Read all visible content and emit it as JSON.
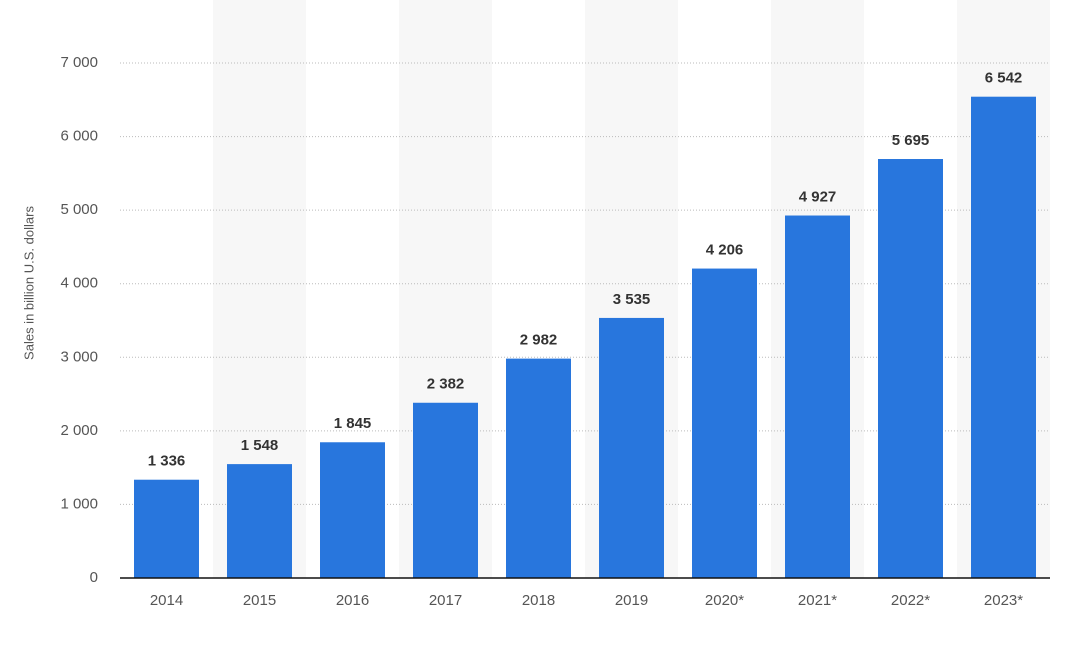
{
  "chart_data": {
    "type": "bar",
    "y_label": "Sales in billion U.S. dollars",
    "categories": [
      "2014",
      "2015",
      "2016",
      "2017",
      "2018",
      "2019",
      "2020*",
      "2021*",
      "2022*",
      "2023*"
    ],
    "values": [
      1336,
      1548,
      1845,
      2382,
      2982,
      3535,
      4206,
      4927,
      5695,
      6542
    ],
    "value_labels": [
      "1 336",
      "1 548",
      "1 845",
      "2 382",
      "2 982",
      "3 535",
      "4 206",
      "4 927",
      "5 695",
      "6 542"
    ],
    "color": "#2876dd",
    "ylim": [
      0,
      7000
    ],
    "yticks": [
      0,
      {
        "value": 1000,
        "label": "1 000"
      },
      {
        "value": 2000,
        "label": "2 000"
      },
      {
        "value": 3000,
        "label": "3 000"
      },
      {
        "value": 4000,
        "label": "4 000"
      },
      {
        "value": 5000,
        "label": "5 000"
      },
      {
        "value": 6000,
        "label": "6 000"
      },
      {
        "value": 7000,
        "label": "7 000"
      }
    ],
    "grid": true
  }
}
